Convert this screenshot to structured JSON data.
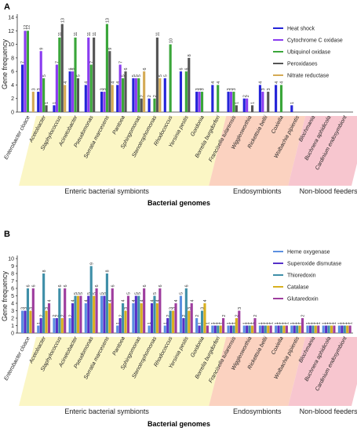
{
  "chart_data": [
    {
      "panel_label": "A",
      "type": "bar",
      "ylabel": "Gene frequency",
      "xlabel": "Bacterial genomes",
      "ylim": [
        0,
        14
      ],
      "yticks": [
        0,
        2,
        4,
        6,
        8,
        10,
        12,
        14
      ],
      "grid": false,
      "legend_position": "top-right",
      "categories": [
        "Enterobacter cloace",
        "Acetobacter",
        "Staphylococcus",
        "Acinetobacter",
        "Pseudomonas",
        "Serratia marcesens",
        "Pantoea",
        "Sphingomonas",
        "Stenotrophomonas",
        "Rhodococcus",
        "Yersinia pestis",
        "Gordonia",
        "Borrelia burgdorferi",
        "Francisella tularensis",
        "Wigglesworthia",
        "Rickettsia bellii",
        "Coxiella",
        "Wolbachia pipientis",
        "Blochmania",
        "Buchnera aphidicola",
        "Cardinium endosymbiont"
      ],
      "groups": [
        {
          "label": "Enteric bacterial symbionts",
          "color": "#fbf6c5"
        },
        {
          "label": "Endosymbionts",
          "color": "#fbd2c0"
        },
        {
          "label": "Non-blood feeders",
          "color": "#f7c6cf"
        }
      ],
      "series": [
        {
          "name": "Heat shock",
          "color": "#2424d8",
          "values": [
            7,
            3,
            1,
            6,
            4,
            3,
            4,
            5,
            2,
            5,
            6,
            3,
            4,
            3,
            2,
            4,
            4,
            1,
            null,
            null,
            null
          ]
        },
        {
          "name": "Cytochrome C oxidase",
          "color": "#8a3cf0",
          "values": [
            12,
            9,
            7,
            6,
            11,
            3,
            7,
            5,
            null,
            null,
            null,
            3,
            null,
            3,
            2,
            3,
            null,
            null,
            null,
            null,
            null
          ]
        },
        {
          "name": "Ubiquinol oxidase",
          "color": "#3aa63a",
          "values": [
            12,
            5,
            11,
            11,
            7,
            13,
            5,
            5,
            2,
            10,
            6,
            3,
            4,
            3,
            null,
            null,
            4,
            null,
            null,
            null,
            null
          ]
        },
        {
          "name": "Peroxidases",
          "color": "#555555",
          "values": [
            null,
            1,
            13,
            5,
            11,
            9,
            6,
            2,
            11,
            null,
            8,
            null,
            null,
            1,
            1,
            3,
            null,
            null,
            null,
            null,
            null
          ]
        },
        {
          "name": "Nitrate reductase",
          "color": "#d4aa55",
          "values": [
            3,
            null,
            4,
            null,
            null,
            4,
            null,
            6,
            5,
            null,
            null,
            null,
            null,
            null,
            null,
            null,
            null,
            null,
            null,
            null,
            null
          ]
        }
      ]
    },
    {
      "panel_label": "B",
      "type": "bar",
      "ylabel": "Gene frequency",
      "xlabel": "Bacterial genomes",
      "ylim": [
        0,
        10
      ],
      "yticks": [
        0,
        1,
        2,
        3,
        4,
        5,
        6,
        7,
        8,
        9,
        10
      ],
      "grid": false,
      "legend_position": "top-right",
      "categories": [
        "Enterobacter cloace",
        "Acetobacter",
        "Staphylococcus",
        "Acinetobacter",
        "Pseudomonas",
        "Serratia marcesens",
        "Pantoea",
        "Sphingomonas",
        "Stenotrophomonas",
        "Rhodococcus",
        "Yersinia pestis",
        "Gordonia",
        "Borrelia burgdorferi",
        "Francisella tularensis",
        "Wigglesworthia",
        "Rickettsia bellii",
        "Coxiella",
        "Wolbachia pipientis",
        "Blochmania",
        "Buchnera aphidicola",
        "Cardinium endosymbiont"
      ],
      "groups": [
        {
          "label": "Enteric bacterial symbionts",
          "color": "#fbf6c5"
        },
        {
          "label": "Endosymbionts",
          "color": "#fbd2c0"
        },
        {
          "label": "Non-blood feeders",
          "color": "#f7c6cf"
        }
      ],
      "series": [
        {
          "name": "Heme oxygenase",
          "color": "#5b8fe0",
          "values": [
            3,
            1,
            2,
            2,
            4,
            5,
            1,
            4,
            1,
            1,
            5,
            2,
            1,
            1,
            1,
            1,
            1,
            1,
            1,
            1,
            1
          ]
        },
        {
          "name": "Superoxide dismutase",
          "color": "#5530c8",
          "values": [
            3,
            2,
            2,
            4,
            5,
            5,
            2,
            5,
            4,
            2,
            2,
            1,
            1,
            1,
            1,
            1,
            1,
            1,
            1,
            1,
            1
          ]
        },
        {
          "name": "Thioredoxin",
          "color": "#3f8fa8",
          "values": [
            6,
            8,
            6,
            5,
            9,
            8,
            4,
            5,
            5,
            3,
            6,
            3,
            1,
            1,
            1,
            1,
            1,
            1,
            1,
            1,
            1
          ]
        },
        {
          "name": "Catalase",
          "color": "#d8b020",
          "values": [
            3,
            3,
            2,
            5,
            5,
            4,
            3,
            4,
            4,
            3,
            3,
            4,
            1,
            2,
            1,
            1,
            1,
            1,
            1,
            1,
            1
          ]
        },
        {
          "name": "Glutaredoxin",
          "color": "#9e3d9e",
          "values": [
            6,
            4,
            6,
            5,
            6,
            6,
            5,
            6,
            6,
            4,
            4,
            1,
            2,
            3,
            2,
            1,
            1,
            2,
            1,
            1,
            1
          ]
        }
      ]
    }
  ]
}
